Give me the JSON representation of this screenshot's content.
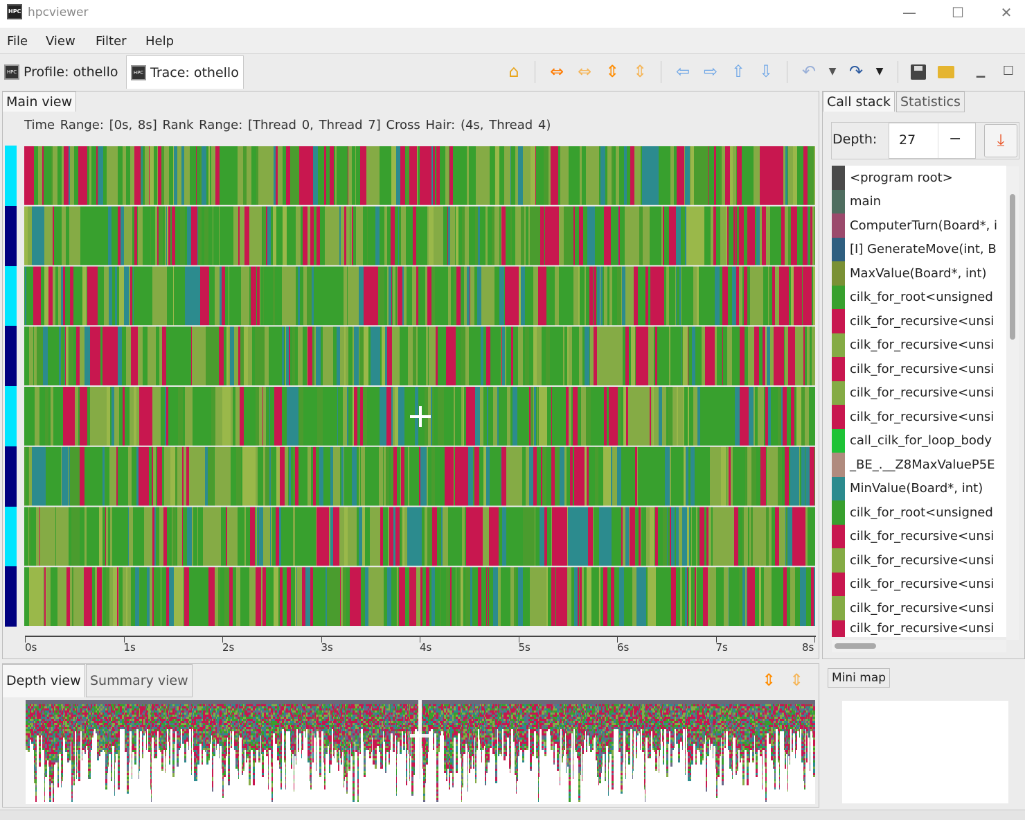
{
  "window": {
    "title": "hpcviewer",
    "icon_text": "HPC"
  },
  "menu": [
    "File",
    "View",
    "Filter",
    "Help"
  ],
  "tabs": {
    "profile": "Profile: othello",
    "trace": "Trace: othello"
  },
  "main_view": {
    "tab_label": "Main view",
    "info": "Time Range: [0s, 8s]  Rank Range: [Thread 0, Thread 7]  Cross Hair: (4s, Thread 4)",
    "ticks": [
      "0s",
      "1s",
      "2s",
      "3s",
      "4s",
      "5s",
      "6s",
      "7s",
      "8s"
    ],
    "thread_count": 8,
    "marker_colors": [
      "#00e5ff",
      "#000080"
    ]
  },
  "bottom": {
    "depth_tab": "Depth view",
    "summary_tab": "Summary view",
    "minimap_tab": "Mini map"
  },
  "call_stack": {
    "tab": "Call stack",
    "stats_tab": "Statistics",
    "depth_label": "Depth:",
    "depth_value": "27",
    "minus": "−",
    "frames": [
      {
        "label": "<program root>",
        "color": "#4a4a4a"
      },
      {
        "label": "main",
        "color": "#4f6e60"
      },
      {
        "label": "ComputerTurn(Board*, i",
        "color": "#9b4a6c"
      },
      {
        "label": "[I] GenerateMove(int, B",
        "color": "#2f5f80"
      },
      {
        "label": "MaxValue(Board*, int)",
        "color": "#7a9135"
      },
      {
        "label": "cilk_for_root<unsigned",
        "color": "#38a02e"
      },
      {
        "label": "cilk_for_recursive<unsi",
        "color": "#c8174f"
      },
      {
        "label": "cilk_for_recursive<unsi",
        "color": "#85ab45"
      },
      {
        "label": "cilk_for_recursive<unsi",
        "color": "#c8174f"
      },
      {
        "label": "cilk_for_recursive<unsi",
        "color": "#85ab45"
      },
      {
        "label": "cilk_for_recursive<unsi",
        "color": "#c8174f"
      },
      {
        "label": "call_cilk_for_loop_body",
        "color": "#1ec336"
      },
      {
        "label": "_BE_.__Z8MaxValueP5E",
        "color": "#b08b7e"
      },
      {
        "label": "MinValue(Board*, int)",
        "color": "#2c8b8e"
      },
      {
        "label": "cilk_for_root<unsigned",
        "color": "#38a02e"
      },
      {
        "label": "cilk_for_recursive<unsi",
        "color": "#c8174f"
      },
      {
        "label": "cilk_for_recursive<unsi",
        "color": "#85ab45"
      },
      {
        "label": "cilk_for_recursive<unsi",
        "color": "#c8174f"
      },
      {
        "label": "cilk_for_recursive<unsi",
        "color": "#85ab45"
      },
      {
        "label": "cilk_for_recursive<unsi",
        "color": "#c8174f"
      }
    ]
  },
  "trace_colors": [
    "#38a02e",
    "#85ab45",
    "#c8174f",
    "#2c8b8e",
    "#4a9c2e",
    "#9ab84a"
  ]
}
